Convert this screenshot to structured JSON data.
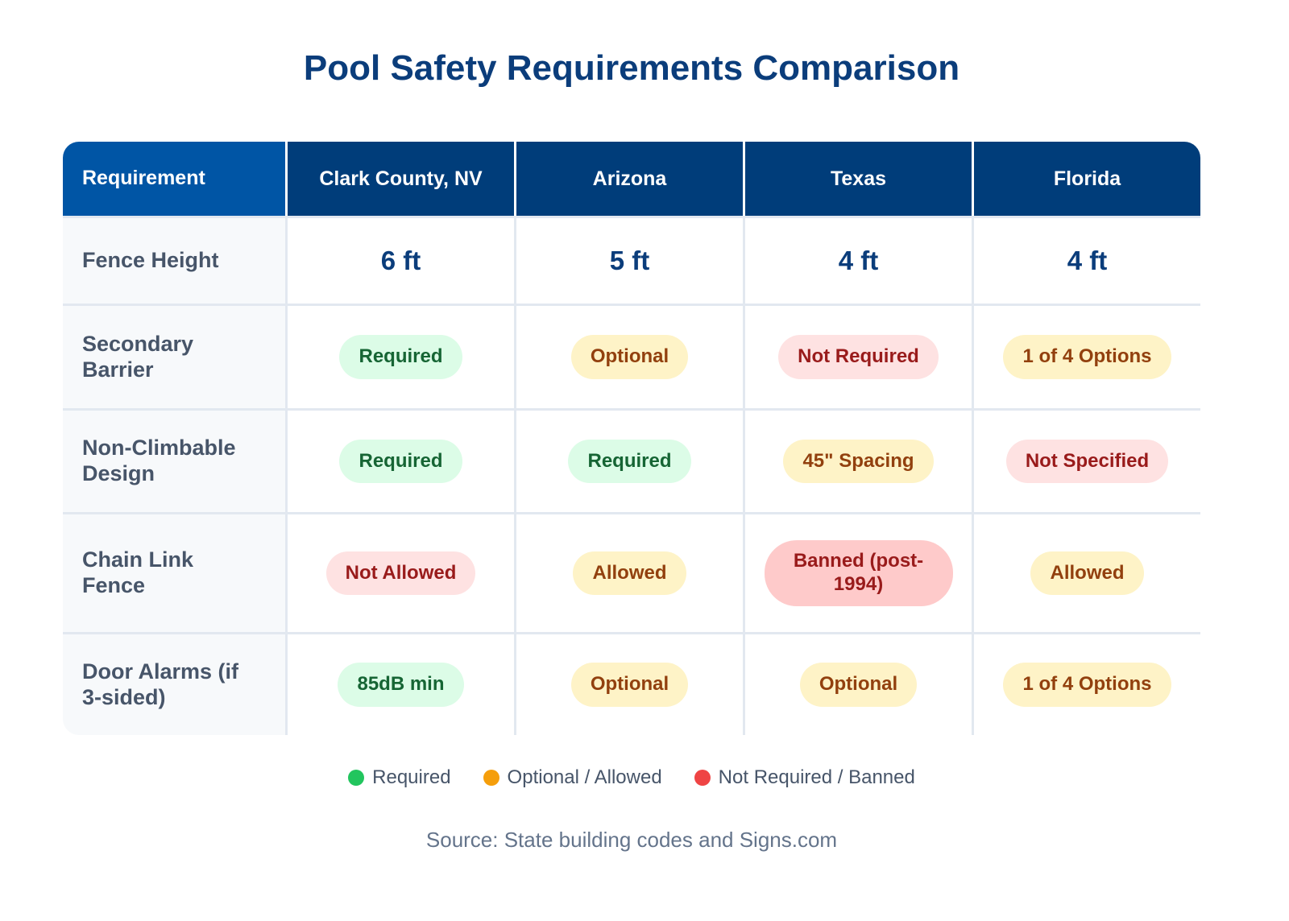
{
  "title": "Pool Safety Requirements Comparison",
  "table": {
    "header": [
      "Requirement",
      "Clark County, NV",
      "Arizona",
      "Texas",
      "Florida"
    ],
    "rows": [
      [
        "Fence Height",
        "6 ft",
        "5 ft",
        "4 ft",
        "4 ft"
      ],
      [
        "Secondary Barrier",
        "Required",
        "Optional",
        "Not Required",
        "1 of 4 Options"
      ],
      [
        "Non-Climbable Design",
        "Required",
        "Required",
        "45\" Spacing",
        "Not Specified"
      ],
      [
        "Chain Link Fence",
        "Not Allowed",
        "Allowed",
        "Banned (post-1994)",
        "Allowed"
      ],
      [
        "Door Alarms (if 3-sided)",
        "85dB min",
        "Optional",
        "Optional",
        "1 of 4 Options"
      ]
    ]
  },
  "legend": [
    "Required",
    "Optional / Allowed",
    "Not Required / Banned"
  ],
  "source": "Source: State building codes and Signs.com"
}
